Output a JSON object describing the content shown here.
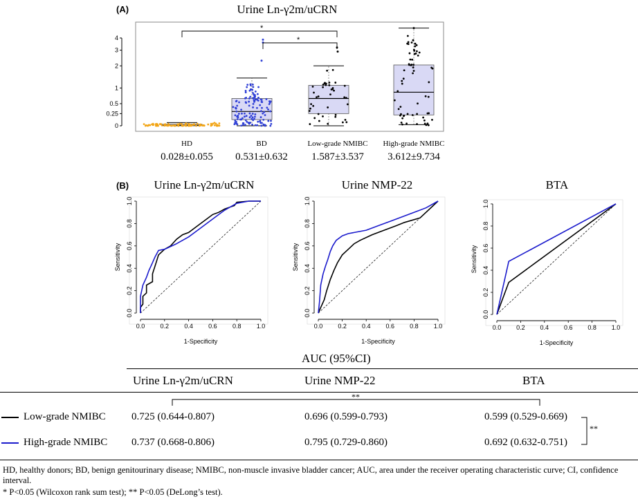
{
  "panel_a": {
    "label": "(A)",
    "title": "Urine Ln-γ2m/uCRN",
    "significance_marks": [
      "*",
      "*"
    ],
    "groups": [
      {
        "name": "HD",
        "stat": "0.028±0.055"
      },
      {
        "name": "BD",
        "stat": "0.531±0.632"
      },
      {
        "name": "Low-grade NMIBC",
        "stat": "1.587±3.537"
      },
      {
        "name": "High-grade NMIBC",
        "stat": "3.612±9.734"
      }
    ]
  },
  "panel_b": {
    "label": "(B)",
    "x_label": "1-Specificity",
    "y_label": "Sensitivity",
    "plots": [
      {
        "title": "Urine Ln-γ2m/uCRN"
      },
      {
        "title": "Urine NMP-22"
      },
      {
        "title": "BTA"
      }
    ]
  },
  "auc_table": {
    "title": "AUC (95%CI)",
    "columns": [
      "Urine Ln-γ2m/uCRN",
      "Urine NMP-22",
      "BTA"
    ],
    "significance_mark": "**",
    "rows": [
      {
        "label": "Low-grade NMIBC",
        "values": [
          "0.725 (0.644-0.807)",
          "0.696 (0.599-0.793)",
          "0.599 (0.529-0.669)"
        ],
        "color": "#000000"
      },
      {
        "label": "High-grade NMIBC",
        "values": [
          "0.737 (0.668-0.806)",
          "0.795 (0.729-0.860)",
          "0.692 (0.632-0.751)"
        ],
        "color": "#1a1acc"
      }
    ]
  },
  "footnote": {
    "line1": "HD, healthy donors; BD, benign genitourinary disease; NMIBC, non-muscle invasive bladder cancer; AUC, area under the receiver operating characteristic curve; CI, confidence interval.",
    "line2": "* P<0.05 (Wilcoxon rank sum test); ** P<0.05 (DeLong’s test)."
  },
  "chart_data": [
    {
      "type": "box",
      "title": "Urine Ln-γ2m/uCRN",
      "categories": [
        "HD",
        "BD",
        "Low-grade NMIBC",
        "High-grade NMIBC"
      ],
      "y_ticks": [
        "0",
        "0.25",
        "0.5",
        "1",
        "2",
        "3",
        "4"
      ],
      "y_scale": "log1p",
      "box_color_hd": "#f2a516",
      "box_color_bd": "#2f3fd6",
      "box_color_nmibc": "#000000",
      "box_fill": "#d9d9f5",
      "boxes": [
        {
          "category": "HD",
          "q1": 0.0,
          "median": 0.01,
          "q3": 0.03,
          "whisker_low": 0.0,
          "whisker_high": 0.06
        },
        {
          "category": "BD",
          "q1": 0.12,
          "median": 0.3,
          "q3": 0.65,
          "whisker_low": 0.0,
          "whisker_high": 1.4
        },
        {
          "category": "Low-grade NMIBC",
          "q1": 0.25,
          "median": 0.65,
          "q3": 1.1,
          "whisker_low": 0.0,
          "whisker_high": 2.0
        },
        {
          "category": "High-grade NMIBC",
          "q1": 0.22,
          "median": 0.85,
          "q3": 2.05,
          "whisker_low": 0.02,
          "whisker_high": 5.0
        }
      ]
    },
    {
      "type": "line",
      "title": "Urine Ln-γ2m/uCRN",
      "xlabel": "1-Specificity",
      "ylabel": "Sensitivity",
      "xlim": [
        0,
        1
      ],
      "ylim": [
        0,
        1
      ],
      "x_ticks": [
        "0.0",
        "0.2",
        "0.4",
        "0.6",
        "0.8",
        "1.0"
      ],
      "y_ticks": [
        "0.0",
        "0.2",
        "0.4",
        "0.6",
        "0.8",
        "1.0"
      ],
      "series": [
        {
          "color": "#000000",
          "x": [
            0,
            0,
            0.02,
            0.02,
            0.05,
            0.05,
            0.1,
            0.1,
            0.13,
            0.15,
            0.2,
            0.25,
            0.3,
            0.35,
            0.4,
            0.45,
            0.5,
            0.55,
            0.6,
            0.65,
            0.7,
            0.78,
            0.8,
            0.9,
            1.0
          ],
          "y": [
            0,
            0.05,
            0.08,
            0.15,
            0.18,
            0.25,
            0.28,
            0.35,
            0.45,
            0.52,
            0.57,
            0.6,
            0.66,
            0.7,
            0.72,
            0.76,
            0.8,
            0.84,
            0.88,
            0.9,
            0.93,
            0.96,
            0.99,
            1.0,
            1.0
          ]
        },
        {
          "color": "#1a1acc",
          "x": [
            0,
            0,
            0.02,
            0.05,
            0.07,
            0.1,
            0.12,
            0.15,
            0.2,
            0.3,
            0.35,
            0.4,
            0.45,
            0.5,
            0.55,
            0.6,
            0.65,
            0.7,
            0.75,
            0.8,
            0.9,
            1.0
          ],
          "y": [
            0,
            0.15,
            0.25,
            0.32,
            0.38,
            0.45,
            0.5,
            0.56,
            0.57,
            0.62,
            0.65,
            0.68,
            0.72,
            0.76,
            0.8,
            0.84,
            0.88,
            0.92,
            0.95,
            0.98,
            1.0,
            1.0
          ]
        }
      ]
    },
    {
      "type": "line",
      "title": "Urine NMP-22",
      "xlabel": "1-Specificity",
      "ylabel": "Sensitivity",
      "xlim": [
        0,
        1
      ],
      "ylim": [
        0,
        1
      ],
      "x_ticks": [
        "0.0",
        "0.2",
        "0.4",
        "0.6",
        "0.8",
        "1.0"
      ],
      "y_ticks": [
        "0.0",
        "0.2",
        "0.4",
        "0.6",
        "0.8",
        "1.0"
      ],
      "series": [
        {
          "color": "#000000",
          "x": [
            0,
            0.02,
            0.05,
            0.07,
            0.1,
            0.13,
            0.16,
            0.2,
            0.25,
            0.3,
            0.35,
            0.45,
            0.55,
            0.65,
            0.72,
            0.85,
            1.0
          ],
          "y": [
            0,
            0.05,
            0.12,
            0.2,
            0.3,
            0.38,
            0.45,
            0.52,
            0.57,
            0.62,
            0.65,
            0.7,
            0.74,
            0.78,
            0.81,
            0.85,
            1.0
          ]
        },
        {
          "color": "#1a1acc",
          "x": [
            0,
            0.01,
            0.02,
            0.04,
            0.06,
            0.08,
            0.1,
            0.12,
            0.15,
            0.2,
            0.25,
            0.3,
            0.4,
            0.5,
            0.6,
            0.7,
            0.8,
            0.9,
            1.0
          ],
          "y": [
            0,
            0.1,
            0.25,
            0.35,
            0.42,
            0.48,
            0.55,
            0.6,
            0.65,
            0.69,
            0.71,
            0.72,
            0.74,
            0.78,
            0.82,
            0.86,
            0.9,
            0.94,
            1.0
          ]
        }
      ]
    },
    {
      "type": "line",
      "title": "BTA",
      "xlabel": "1-Specificity",
      "ylabel": "Sensitivity",
      "xlim": [
        0,
        1
      ],
      "ylim": [
        0,
        1
      ],
      "x_ticks": [
        "0.0",
        "0.2",
        "0.4",
        "0.6",
        "0.8",
        "1.0"
      ],
      "y_ticks": [
        "0.0",
        "0.2",
        "0.4",
        "0.6",
        "0.8",
        "1.0"
      ],
      "series": [
        {
          "color": "#000000",
          "x": [
            0,
            0.1,
            1.0
          ],
          "y": [
            0,
            0.29,
            1.0
          ]
        },
        {
          "color": "#1a1acc",
          "x": [
            0,
            0.1,
            1.0
          ],
          "y": [
            0,
            0.48,
            1.0
          ]
        }
      ]
    }
  ]
}
